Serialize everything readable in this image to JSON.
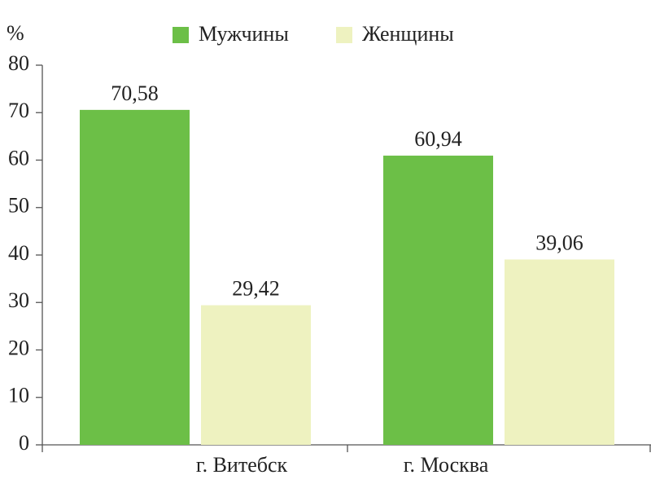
{
  "chart_data": {
    "type": "bar",
    "y_label": "%",
    "categories": [
      "г. Витебск",
      "г. Москва"
    ],
    "series": [
      {
        "name": "Мужчины",
        "color": "#6cbf47",
        "values": [
          70.58,
          60.94
        ],
        "value_labels": [
          "70,58",
          "60,94"
        ]
      },
      {
        "name": "Женщины",
        "color": "#eef2c0",
        "values": [
          29.42,
          39.06
        ],
        "value_labels": [
          "29,42",
          "39,06"
        ]
      }
    ],
    "ylim": [
      0,
      80
    ],
    "yticks": [
      0,
      10,
      20,
      30,
      40,
      50,
      60,
      70,
      80
    ],
    "grid": false,
    "legend": "top"
  }
}
